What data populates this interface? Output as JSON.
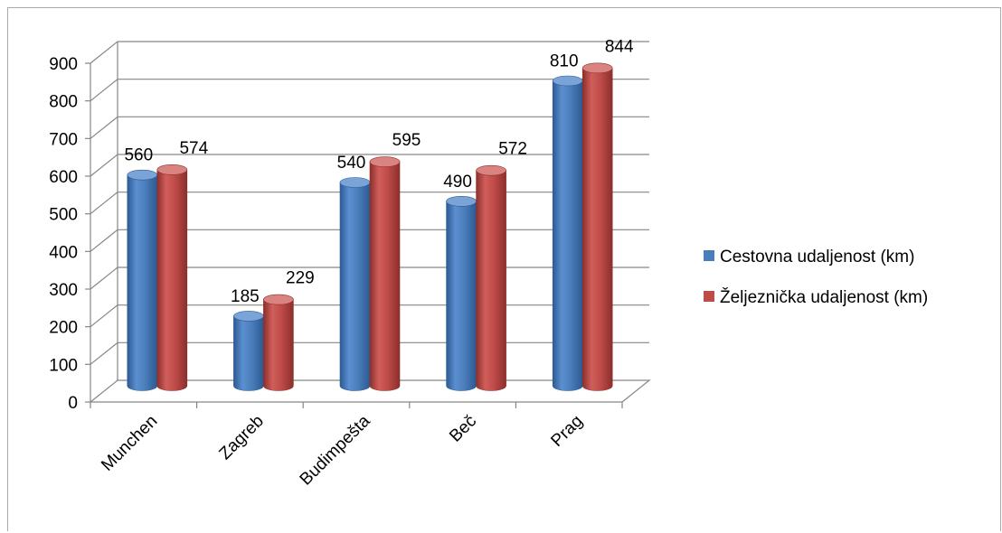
{
  "chart_data": {
    "type": "bar",
    "style": "3d-cylinder",
    "title": "",
    "xlabel": "",
    "ylabel": "",
    "categories": [
      "Munchen",
      "Zagreb",
      "Budimpešta",
      "Beč",
      "Prag"
    ],
    "series": [
      {
        "name": "Cestovna udaljenost (km)",
        "color": "#4a7ebb",
        "values": [
          560,
          185,
          540,
          490,
          810
        ],
        "labels": [
          "560",
          "185",
          "540",
          "490",
          "810"
        ]
      },
      {
        "name": "Željeznička udaljenost (km)",
        "color": "#be4b48",
        "values": [
          574,
          229,
          595,
          572,
          844
        ],
        "labels": [
          "574",
          "229",
          "595",
          "572",
          "844"
        ]
      }
    ],
    "y_ticks": [
      "0",
      "100",
      "200",
      "300",
      "400",
      "500",
      "600",
      "700",
      "800",
      "900"
    ],
    "ylim": [
      0,
      900
    ],
    "grid": true,
    "legend_position": "right"
  }
}
